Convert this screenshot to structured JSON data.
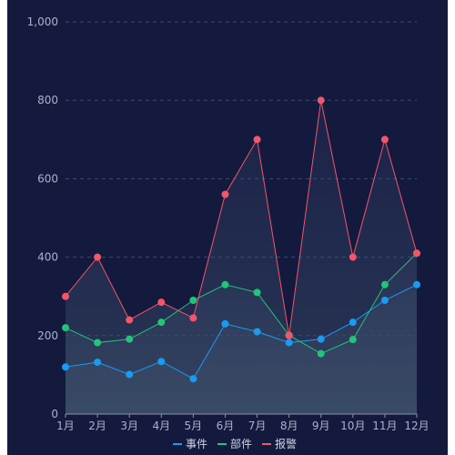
{
  "chart_data": {
    "type": "line",
    "categories": [
      "1月",
      "2月",
      "3月",
      "4月",
      "5月",
      "6月",
      "7月",
      "8月",
      "9月",
      "10月",
      "11月",
      "12月"
    ],
    "ylim": [
      0,
      1000
    ],
    "yticks": [
      0,
      200,
      400,
      600,
      800,
      1000
    ],
    "ytick_labels": [
      "0",
      "200",
      "400",
      "600",
      "800",
      "1,000"
    ],
    "grid": true,
    "legend_position": "bottom",
    "series": [
      {
        "name": "事件",
        "color": "#1a9bf0",
        "values": [
          120,
          132,
          101,
          134,
          90,
          230,
          210,
          182,
          191,
          234,
          290,
          330
        ]
      },
      {
        "name": "部件",
        "color": "#22c37a",
        "values": [
          220,
          182,
          191,
          234,
          290,
          330,
          310,
          201,
          154,
          190,
          330,
          410
        ]
      },
      {
        "name": "报警",
        "color": "#f2566a",
        "values": [
          300,
          400,
          240,
          285,
          245,
          560,
          700,
          200,
          800,
          400,
          700,
          410
        ]
      }
    ]
  }
}
